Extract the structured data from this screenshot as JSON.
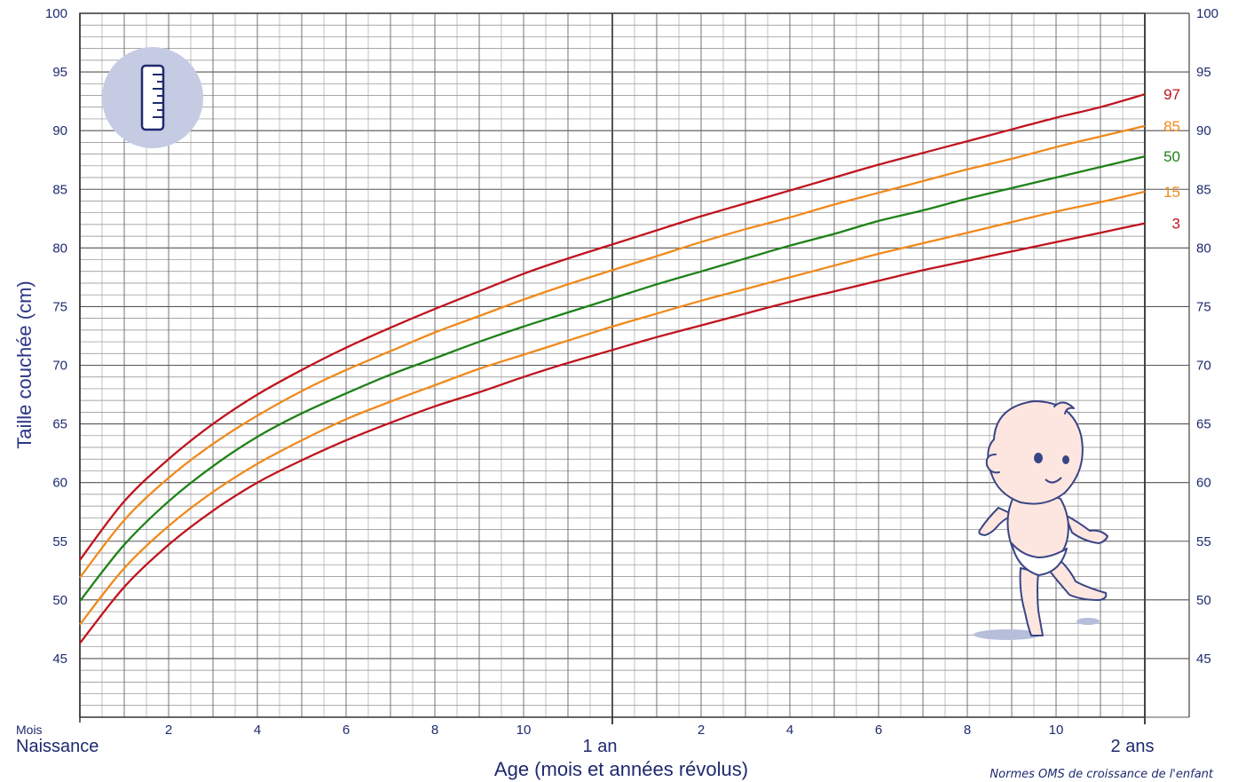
{
  "chart_data": {
    "type": "line",
    "ylabel": "Taille couchée (cm)",
    "xlabel": "Age (mois et années révolus)",
    "note": "Normes OMS de croissance de l'enfant",
    "x_unit_label": "Mois",
    "x_start_label": "Naissance",
    "year_labels": [
      "1 an",
      "2 ans"
    ],
    "x_tick_labels": [
      "2",
      "4",
      "6",
      "8",
      "10",
      "2",
      "4",
      "6",
      "8",
      "10"
    ],
    "x_tick_months": [
      2,
      4,
      6,
      8,
      10,
      14,
      16,
      18,
      20,
      22
    ],
    "xlim": [
      0,
      24
    ],
    "ylim": [
      40,
      100
    ],
    "y_ticks": [
      45,
      50,
      55,
      60,
      65,
      70,
      75,
      80,
      85,
      90,
      95,
      100
    ],
    "grid": true,
    "x": [
      0,
      1,
      2,
      3,
      4,
      5,
      6,
      7,
      8,
      9,
      10,
      11,
      12,
      13,
      14,
      15,
      16,
      17,
      18,
      19,
      20,
      21,
      22,
      23,
      24
    ],
    "series": [
      {
        "name": "97",
        "color": "#c0141e",
        "values": [
          53.4,
          58.4,
          62.0,
          65.0,
          67.5,
          69.6,
          71.5,
          73.2,
          74.8,
          76.3,
          77.8,
          79.1,
          80.3,
          81.5,
          82.7,
          83.8,
          84.9,
          86.0,
          87.1,
          88.1,
          89.1,
          90.1,
          91.1,
          92.0,
          93.1
        ]
      },
      {
        "name": "85",
        "color": "#f08a1c",
        "values": [
          51.9,
          56.8,
          60.4,
          63.3,
          65.7,
          67.8,
          69.6,
          71.2,
          72.8,
          74.2,
          75.6,
          76.9,
          78.1,
          79.3,
          80.5,
          81.6,
          82.6,
          83.7,
          84.7,
          85.7,
          86.7,
          87.6,
          88.6,
          89.5,
          90.4
        ]
      },
      {
        "name": "50",
        "color": "#1e8218",
        "values": [
          49.9,
          54.7,
          58.4,
          61.4,
          63.9,
          65.9,
          67.6,
          69.2,
          70.6,
          72.0,
          73.3,
          74.5,
          75.7,
          76.9,
          78.0,
          79.1,
          80.2,
          81.2,
          82.3,
          83.2,
          84.2,
          85.1,
          86.0,
          86.9,
          87.8
        ]
      },
      {
        "name": "15",
        "color": "#f08a1c",
        "values": [
          47.9,
          52.7,
          56.3,
          59.2,
          61.6,
          63.6,
          65.4,
          66.9,
          68.3,
          69.7,
          70.9,
          72.1,
          73.3,
          74.4,
          75.5,
          76.5,
          77.5,
          78.5,
          79.5,
          80.4,
          81.3,
          82.2,
          83.1,
          83.9,
          84.8
        ]
      },
      {
        "name": "3",
        "color": "#c0141e",
        "values": [
          46.3,
          51.1,
          54.7,
          57.6,
          60.0,
          61.9,
          63.6,
          65.1,
          66.5,
          67.7,
          69.0,
          70.2,
          71.3,
          72.4,
          73.4,
          74.4,
          75.4,
          76.3,
          77.2,
          78.1,
          78.9,
          79.7,
          80.5,
          81.3,
          82.1
        ]
      }
    ]
  }
}
